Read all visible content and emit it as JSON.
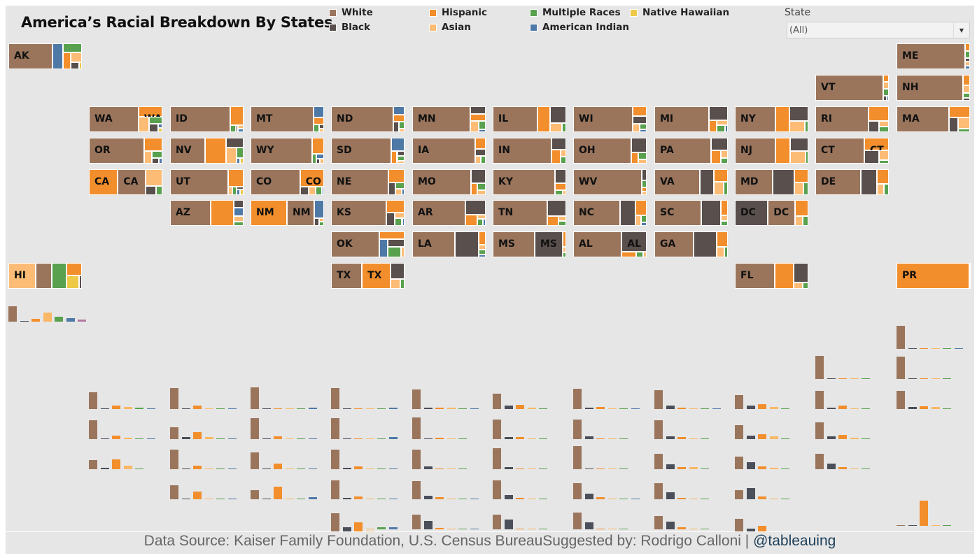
{
  "title": "America’s Racial Breakdown By States",
  "legend": [
    {
      "label": "White",
      "key": "white",
      "color": "#9a755c"
    },
    {
      "label": "Black",
      "key": "black",
      "color": "#594f4c"
    },
    {
      "label": "Hispanic",
      "key": "hispanic",
      "color": "#f28e2c"
    },
    {
      "label": "Asian",
      "key": "asian",
      "color": "#fdbc76"
    },
    {
      "label": "Multiple Races",
      "key": "multiple",
      "color": "#59a14f"
    },
    {
      "label": "American Indian",
      "key": "amind",
      "color": "#4e79a7"
    },
    {
      "label": "Native Hawaiian",
      "key": "nhpi",
      "color": "#edc948"
    }
  ],
  "bar_colors": {
    "white": "#9a755c",
    "black": "#4a4f5a",
    "hispanic": "#f28e2c",
    "asian": "#f9b865",
    "multiple": "#59a14f",
    "amind": "#4e79a7",
    "nhpi": "#b07aa1"
  },
  "filter": {
    "label": "State",
    "value": "(All)",
    "dropdown_icon": "caret-down-icon"
  },
  "footer": {
    "source": "Data Source: Kaiser Family Foundation, U.S. Census BureauSuggested by: Rodrigo Calloni | ",
    "handle": "@tableauing"
  },
  "chart_data": {
    "type": "treemap-tile-grid",
    "title": "America’s Racial Breakdown By States",
    "series_order": [
      "white",
      "black",
      "hispanic",
      "asian",
      "multiple",
      "amind",
      "nhpi"
    ],
    "units": "share of population (%)",
    "states": [
      {
        "state": "AK",
        "col": 0,
        "row": 0,
        "white": 61,
        "black": 3,
        "hispanic": 7,
        "asian": 6,
        "multiple": 9,
        "amind": 14,
        "nhpi": 1
      },
      {
        "state": "ME",
        "col": 11,
        "row": 0,
        "white": 93,
        "black": 1,
        "hispanic": 2,
        "asian": 1,
        "multiple": 2,
        "amind": 1,
        "nhpi": 0
      },
      {
        "state": "VT",
        "col": 10,
        "row": 1,
        "white": 93,
        "black": 1,
        "hispanic": 2,
        "asian": 2,
        "multiple": 2,
        "amind": 0.5,
        "nhpi": 0
      },
      {
        "state": "NH",
        "col": 11,
        "row": 1,
        "white": 90,
        "black": 1,
        "hispanic": 4,
        "asian": 3,
        "multiple": 2,
        "amind": 0,
        "nhpi": 0
      },
      {
        "state": "WA",
        "col": 1,
        "row": 2,
        "white": 68,
        "black": 4,
        "hispanic": 13,
        "asian": 9,
        "multiple": 5,
        "amind": 1,
        "nhpi": 1
      },
      {
        "state": "ID",
        "col": 2,
        "row": 2,
        "white": 82,
        "black": 1,
        "hispanic": 13,
        "asian": 1,
        "multiple": 2,
        "amind": 1,
        "nhpi": 0
      },
      {
        "state": "MT",
        "col": 3,
        "row": 2,
        "white": 86,
        "black": 1,
        "hispanic": 4,
        "asian": 1,
        "multiple": 2,
        "amind": 6,
        "nhpi": 0
      },
      {
        "state": "ND",
        "col": 4,
        "row": 2,
        "white": 84,
        "black": 3,
        "hispanic": 4,
        "asian": 1,
        "multiple": 2,
        "amind": 5,
        "nhpi": 0
      },
      {
        "state": "MN",
        "col": 5,
        "row": 2,
        "white": 79,
        "black": 6,
        "hispanic": 6,
        "asian": 5,
        "multiple": 3,
        "amind": 1,
        "nhpi": 0
      },
      {
        "state": "IL",
        "col": 6,
        "row": 2,
        "white": 61,
        "black": 14,
        "hispanic": 17,
        "asian": 6,
        "multiple": 2,
        "amind": 0,
        "nhpi": 0
      },
      {
        "state": "WI",
        "col": 7,
        "row": 2,
        "white": 81,
        "black": 6,
        "hispanic": 7,
        "asian": 3,
        "multiple": 2,
        "amind": 1,
        "nhpi": 0
      },
      {
        "state": "MI",
        "col": 8,
        "row": 2,
        "white": 75,
        "black": 14,
        "hispanic": 5,
        "asian": 3,
        "multiple": 3,
        "amind": 1,
        "nhpi": 0
      },
      {
        "state": "NY",
        "col": 9,
        "row": 2,
        "white": 55,
        "black": 14,
        "hispanic": 19,
        "asian": 9,
        "multiple": 2,
        "amind": 0,
        "nhpi": 0
      },
      {
        "state": "RI",
        "col": 10,
        "row": 2,
        "white": 72,
        "black": 6,
        "hispanic": 15,
        "asian": 3,
        "multiple": 3,
        "amind": 0,
        "nhpi": 0
      },
      {
        "state": "MA",
        "col": 11,
        "row": 2,
        "white": 71,
        "black": 7,
        "hispanic": 12,
        "asian": 7,
        "multiple": 2,
        "amind": 0,
        "nhpi": 0
      },
      {
        "state": "OR",
        "col": 1,
        "row": 3,
        "white": 75,
        "black": 2,
        "hispanic": 13,
        "asian": 5,
        "multiple": 4,
        "amind": 1,
        "nhpi": 0
      },
      {
        "state": "NV",
        "col": 2,
        "row": 3,
        "white": 48,
        "black": 9,
        "hispanic": 29,
        "asian": 9,
        "multiple": 4,
        "amind": 1,
        "nhpi": 1
      },
      {
        "state": "WY",
        "col": 3,
        "row": 3,
        "white": 84,
        "black": 1,
        "hispanic": 10,
        "asian": 1,
        "multiple": 2,
        "amind": 2,
        "nhpi": 0
      },
      {
        "state": "SD",
        "col": 4,
        "row": 3,
        "white": 82,
        "black": 2,
        "hispanic": 4,
        "asian": 1,
        "multiple": 2,
        "amind": 9,
        "nhpi": 0
      },
      {
        "state": "IA",
        "col": 5,
        "row": 3,
        "white": 85,
        "black": 4,
        "hispanic": 6,
        "asian": 2,
        "multiple": 2,
        "amind": 0,
        "nhpi": 0
      },
      {
        "state": "IN",
        "col": 6,
        "row": 3,
        "white": 79,
        "black": 9,
        "hispanic": 7,
        "asian": 2,
        "multiple": 2,
        "amind": 0,
        "nhpi": 0
      },
      {
        "state": "OH",
        "col": 7,
        "row": 3,
        "white": 78,
        "black": 12,
        "hispanic": 4,
        "asian": 2,
        "multiple": 3,
        "amind": 0,
        "nhpi": 0
      },
      {
        "state": "PA",
        "col": 8,
        "row": 3,
        "white": 76,
        "black": 11,
        "hispanic": 7,
        "asian": 3,
        "multiple": 2,
        "amind": 0,
        "nhpi": 0
      },
      {
        "state": "NJ",
        "col": 9,
        "row": 3,
        "white": 55,
        "black": 13,
        "hispanic": 20,
        "asian": 10,
        "multiple": 2,
        "amind": 0,
        "nhpi": 0
      },
      {
        "state": "CT",
        "col": 10,
        "row": 3,
        "white": 66,
        "black": 10,
        "hispanic": 16,
        "asian": 5,
        "multiple": 2,
        "amind": 0,
        "nhpi": 0
      },
      {
        "state": "CA",
        "col": 1,
        "row": 4,
        "white": 37,
        "black": 5,
        "hispanic": 39,
        "asian": 15,
        "multiple": 3,
        "amind": 0,
        "nhpi": 0
      },
      {
        "state": "UT",
        "col": 2,
        "row": 4,
        "white": 78,
        "black": 1,
        "hispanic": 14,
        "asian": 2,
        "multiple": 2,
        "amind": 1,
        "nhpi": 1
      },
      {
        "state": "CO",
        "col": 3,
        "row": 4,
        "white": 68,
        "black": 4,
        "hispanic": 22,
        "asian": 3,
        "multiple": 3,
        "amind": 1,
        "nhpi": 0
      },
      {
        "state": "NE",
        "col": 4,
        "row": 4,
        "white": 78,
        "black": 5,
        "hispanic": 11,
        "asian": 2,
        "multiple": 3,
        "amind": 1,
        "nhpi": 0
      },
      {
        "state": "MO",
        "col": 5,
        "row": 4,
        "white": 79,
        "black": 11,
        "hispanic": 4,
        "asian": 2,
        "multiple": 3,
        "amind": 0,
        "nhpi": 0
      },
      {
        "state": "KY",
        "col": 6,
        "row": 4,
        "white": 84,
        "black": 8,
        "hispanic": 4,
        "asian": 1,
        "multiple": 2,
        "amind": 0,
        "nhpi": 0
      },
      {
        "state": "WV",
        "col": 7,
        "row": 4,
        "white": 92,
        "black": 3,
        "hispanic": 1,
        "asian": 1,
        "multiple": 2,
        "amind": 0,
        "nhpi": 0
      },
      {
        "state": "VA",
        "col": 8,
        "row": 4,
        "white": 61,
        "black": 19,
        "hispanic": 9,
        "asian": 7,
        "multiple": 3,
        "amind": 0,
        "nhpi": 0
      },
      {
        "state": "MD",
        "col": 9,
        "row": 4,
        "white": 50,
        "black": 29,
        "hispanic": 10,
        "asian": 6,
        "multiple": 3,
        "amind": 0,
        "nhpi": 0
      },
      {
        "state": "DE",
        "col": 10,
        "row": 4,
        "white": 62,
        "black": 22,
        "hispanic": 9,
        "asian": 4,
        "multiple": 3,
        "amind": 0,
        "nhpi": 0
      },
      {
        "state": "AZ",
        "col": 2,
        "row": 5,
        "white": 55,
        "black": 4,
        "hispanic": 31,
        "asian": 3,
        "multiple": 2,
        "amind": 4,
        "nhpi": 0
      },
      {
        "state": "NM",
        "col": 3,
        "row": 5,
        "white": 37,
        "black": 2,
        "hispanic": 49,
        "asian": 1,
        "multiple": 1,
        "amind": 9,
        "nhpi": 0
      },
      {
        "state": "KS",
        "col": 4,
        "row": 5,
        "white": 76,
        "black": 6,
        "hispanic": 12,
        "asian": 3,
        "multiple": 3,
        "amind": 1,
        "nhpi": 0
      },
      {
        "state": "AR",
        "col": 5,
        "row": 5,
        "white": 72,
        "black": 15,
        "hispanic": 7,
        "asian": 2,
        "multiple": 2,
        "amind": 1,
        "nhpi": 0
      },
      {
        "state": "TN",
        "col": 6,
        "row": 5,
        "white": 74,
        "black": 16,
        "hispanic": 6,
        "asian": 2,
        "multiple": 2,
        "amind": 0,
        "nhpi": 0
      },
      {
        "state": "NC",
        "col": 7,
        "row": 5,
        "white": 63,
        "black": 21,
        "hispanic": 9,
        "asian": 3,
        "multiple": 2,
        "amind": 1,
        "nhpi": 0
      },
      {
        "state": "SC",
        "col": 8,
        "row": 5,
        "white": 64,
        "black": 27,
        "hispanic": 6,
        "asian": 2,
        "multiple": 2,
        "amind": 0,
        "nhpi": 0
      },
      {
        "state": "DC",
        "col": 9,
        "row": 5,
        "white": 37,
        "black": 45,
        "hispanic": 11,
        "asian": 4,
        "multiple": 3,
        "amind": 0,
        "nhpi": 0
      },
      {
        "state": "OK",
        "col": 4,
        "row": 6,
        "white": 65,
        "black": 7,
        "hispanic": 10,
        "asian": 2,
        "multiple": 7,
        "amind": 8,
        "nhpi": 0
      },
      {
        "state": "LA",
        "col": 5,
        "row": 6,
        "white": 59,
        "black": 32,
        "hispanic": 5,
        "asian": 2,
        "multiple": 2,
        "amind": 1,
        "nhpi": 0
      },
      {
        "state": "MS",
        "col": 6,
        "row": 6,
        "white": 57,
        "black": 38,
        "hispanic": 3,
        "asian": 1,
        "multiple": 1,
        "amind": 0,
        "nhpi": 0
      },
      {
        "state": "AL",
        "col": 7,
        "row": 6,
        "white": 66,
        "black": 27,
        "hispanic": 4,
        "asian": 1,
        "multiple": 2,
        "amind": 0,
        "nhpi": 0
      },
      {
        "state": "GA",
        "col": 8,
        "row": 6,
        "white": 53,
        "black": 31,
        "hispanic": 9,
        "asian": 4,
        "multiple": 2,
        "amind": 0,
        "nhpi": 0
      },
      {
        "state": "HI",
        "col": 0,
        "row": 7,
        "white": 22,
        "black": 2,
        "hispanic": 10,
        "asian": 37,
        "multiple": 20,
        "amind": 0,
        "nhpi": 9
      },
      {
        "state": "TX",
        "col": 4,
        "row": 7,
        "white": 42,
        "black": 12,
        "hispanic": 39,
        "asian": 5,
        "multiple": 2,
        "amind": 0,
        "nhpi": 0
      },
      {
        "state": "FL",
        "col": 9,
        "row": 7,
        "white": 54,
        "black": 15,
        "hispanic": 26,
        "asian": 3,
        "multiple": 2,
        "amind": 0,
        "nhpi": 0
      },
      {
        "state": "PR",
        "col": 11,
        "row": 7,
        "white": 0.5,
        "black": 0.1,
        "hispanic": 99,
        "asian": 0,
        "multiple": 0.2,
        "amind": 0,
        "nhpi": 0
      }
    ]
  }
}
